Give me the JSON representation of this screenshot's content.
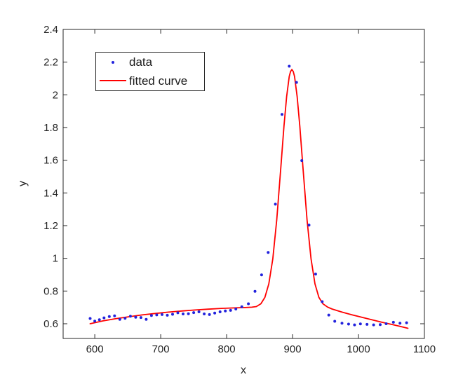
{
  "figure": {
    "background": "#ffffff",
    "axis_color": "#262626",
    "tick_font_px": 15
  },
  "legend": {
    "entries": [
      {
        "label": "data",
        "marker": "dot",
        "color": "#2222dd"
      },
      {
        "label": "fitted curve",
        "marker": "line",
        "color": "#ff0000"
      }
    ]
  },
  "chart_data": {
    "type": "scatter",
    "title": "",
    "xlabel": "x",
    "ylabel": "y",
    "xlim": [
      552,
      1100
    ],
    "ylim": [
      0.51,
      2.4
    ],
    "xticks": [
      600,
      700,
      800,
      900,
      1000,
      1100
    ],
    "xtick_labels": [
      "600",
      "700",
      "800",
      "900",
      "1000",
      "1100"
    ],
    "yticks": [
      0.6,
      0.8,
      1.0,
      1.2,
      1.4,
      1.6,
      1.8,
      2.0,
      2.2,
      2.4
    ],
    "ytick_labels": [
      "0.6",
      "0.8",
      "1",
      "1.2",
      "1.4",
      "1.6",
      "1.8",
      "2",
      "2.2",
      "2.4"
    ],
    "grid": false,
    "legend_position": "upper-left-inside",
    "series": [
      {
        "name": "data",
        "type": "scatter",
        "color": "#2222dd",
        "marker": "dot",
        "points": [
          [
            593,
            0.632
          ],
          [
            600,
            0.616
          ],
          [
            607,
            0.625
          ],
          [
            614,
            0.636
          ],
          [
            622,
            0.644
          ],
          [
            630,
            0.648
          ],
          [
            638,
            0.627
          ],
          [
            646,
            0.633
          ],
          [
            654,
            0.646
          ],
          [
            662,
            0.64
          ],
          [
            670,
            0.638
          ],
          [
            678,
            0.627
          ],
          [
            686,
            0.65
          ],
          [
            694,
            0.654
          ],
          [
            702,
            0.656
          ],
          [
            710,
            0.652
          ],
          [
            718,
            0.658
          ],
          [
            726,
            0.667
          ],
          [
            734,
            0.66
          ],
          [
            742,
            0.661
          ],
          [
            750,
            0.668
          ],
          [
            758,
            0.673
          ],
          [
            766,
            0.66
          ],
          [
            774,
            0.656
          ],
          [
            782,
            0.665
          ],
          [
            790,
            0.673
          ],
          [
            798,
            0.678
          ],
          [
            806,
            0.682
          ],
          [
            814,
            0.69
          ],
          [
            823,
            0.704
          ],
          [
            833,
            0.722
          ],
          [
            843,
            0.798
          ],
          [
            853,
            0.899
          ],
          [
            863,
            1.036
          ],
          [
            874,
            1.331
          ],
          [
            884,
            1.88
          ],
          [
            895,
            2.175
          ],
          [
            906,
            2.076
          ],
          [
            914,
            1.598
          ],
          [
            925,
            1.203
          ],
          [
            935,
            0.904
          ],
          [
            945,
            0.735
          ],
          [
            955,
            0.653
          ],
          [
            964,
            0.615
          ],
          [
            975,
            0.603
          ],
          [
            985,
            0.598
          ],
          [
            994,
            0.593
          ],
          [
            1003,
            0.599
          ],
          [
            1013,
            0.596
          ],
          [
            1023,
            0.593
          ],
          [
            1033,
            0.595
          ],
          [
            1042,
            0.6
          ],
          [
            1053,
            0.609
          ],
          [
            1063,
            0.603
          ],
          [
            1073,
            0.606
          ]
        ]
      },
      {
        "name": "fitted curve",
        "type": "line",
        "color": "#ff0000",
        "points": [
          [
            593,
            0.6
          ],
          [
            612,
            0.617
          ],
          [
            632,
            0.631
          ],
          [
            652,
            0.643
          ],
          [
            672,
            0.654
          ],
          [
            692,
            0.663
          ],
          [
            712,
            0.671
          ],
          [
            732,
            0.678
          ],
          [
            752,
            0.684
          ],
          [
            772,
            0.689
          ],
          [
            792,
            0.694
          ],
          [
            812,
            0.697
          ],
          [
            828,
            0.699
          ],
          [
            838,
            0.701
          ],
          [
            845,
            0.705
          ],
          [
            852,
            0.722
          ],
          [
            858,
            0.761
          ],
          [
            864,
            0.844
          ],
          [
            870,
            0.997
          ],
          [
            876,
            1.235
          ],
          [
            882,
            1.543
          ],
          [
            887,
            1.808
          ],
          [
            891,
            1.989
          ],
          [
            895,
            2.112
          ],
          [
            897,
            2.143
          ],
          [
            899,
            2.155
          ],
          [
            901,
            2.143
          ],
          [
            903,
            2.112
          ],
          [
            907,
            1.989
          ],
          [
            911,
            1.808
          ],
          [
            916,
            1.543
          ],
          [
            922,
            1.235
          ],
          [
            928,
            0.997
          ],
          [
            934,
            0.844
          ],
          [
            940,
            0.761
          ],
          [
            946,
            0.722
          ],
          [
            953,
            0.702
          ],
          [
            960,
            0.69
          ],
          [
            975,
            0.671
          ],
          [
            990,
            0.655
          ],
          [
            1005,
            0.64
          ],
          [
            1020,
            0.625
          ],
          [
            1035,
            0.61
          ],
          [
            1050,
            0.596
          ],
          [
            1062,
            0.585
          ],
          [
            1075,
            0.572
          ]
        ]
      }
    ]
  }
}
